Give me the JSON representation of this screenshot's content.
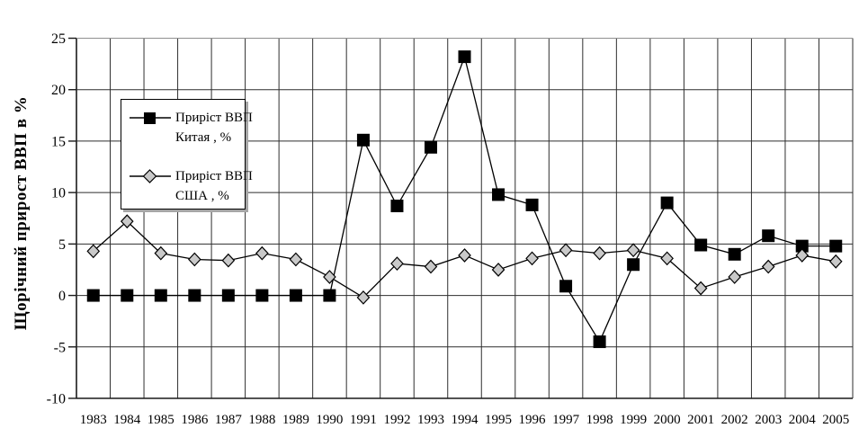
{
  "chart_data": {
    "type": "line",
    "title": "",
    "ylabel": "Щорічний прирост ВВП в %",
    "xlabel": "",
    "ylim": [
      -10,
      25
    ],
    "yticks": [
      25,
      20,
      15,
      10,
      5,
      0,
      -5,
      -10
    ],
    "grid": true,
    "legend_position": "upper-left-inside",
    "categories": [
      "1983",
      "1984",
      "1985",
      "1986",
      "1987",
      "1988",
      "1989",
      "1990",
      "1991",
      "1992",
      "1993",
      "1994",
      "1995",
      "1996",
      "1997",
      "1998",
      "1999",
      "2000",
      "2001",
      "2002",
      "2003",
      "2004",
      "2005"
    ],
    "series": [
      {
        "name": "Приріст ВВП Китая , %",
        "marker": "square",
        "line_color": "#000000",
        "marker_fill": "#000000",
        "marker_stroke": "#000000",
        "values": [
          0,
          0,
          0,
          0,
          0,
          0,
          0,
          0,
          15.1,
          8.7,
          14.4,
          23.2,
          9.8,
          8.8,
          0.9,
          -4.5,
          3.0,
          9.0,
          4.9,
          4.0,
          5.8,
          4.8,
          4.8
        ]
      },
      {
        "name": "Приріст ВВП США , %",
        "marker": "diamond",
        "line_color": "#000000",
        "marker_fill": "#c9c9c9",
        "marker_stroke": "#000000",
        "values": [
          4.3,
          7.2,
          4.1,
          3.5,
          3.4,
          4.1,
          3.5,
          1.8,
          -0.2,
          3.1,
          2.8,
          3.9,
          2.5,
          3.6,
          4.4,
          4.1,
          4.4,
          3.6,
          0.7,
          1.8,
          2.8,
          3.9,
          3.3
        ]
      }
    ]
  },
  "legend": {
    "items": [
      {
        "line1": "Приріст ВВП",
        "line2": "Китая , %",
        "marker": "square"
      },
      {
        "line1": "Приріст ВВП",
        "line2": "США , %",
        "marker": "diamond"
      }
    ]
  },
  "colors": {
    "background": "#ffffff",
    "grid": "#2e2e2e",
    "axis": "#1a1a1a",
    "top_border": "#909090",
    "series_line": "#000000",
    "china_marker": "#000000",
    "usa_marker": "#c9c9c9",
    "legend_shadow": "#a6a6a6",
    "text": "#000000"
  }
}
